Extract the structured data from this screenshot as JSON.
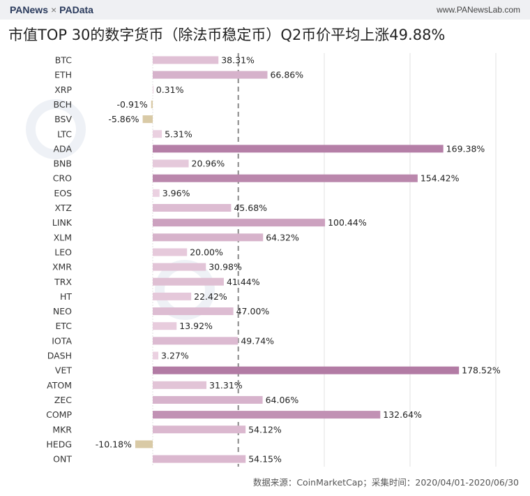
{
  "header": {
    "brand_left": "PANews",
    "separator": "×",
    "brand_right": "PAData",
    "site": "www.PANewsLab.com"
  },
  "title": "市值TOP 30的数字货币（除法币稳定币）Q2币价平均上涨49.88%",
  "watermarks": [
    "PANews",
    "PAData"
  ],
  "source": "数据来源：CoinMarketCap；采集时间：2020/04/01-2020/06/30",
  "colors": {
    "positive_strong": "#b27aa3",
    "positive_light": "#ecd3e2",
    "negative": "#d9caa6",
    "average_line": "#888888"
  },
  "chart_data": {
    "type": "bar",
    "orientation": "horizontal",
    "average": 49.88,
    "grid": true,
    "xlim": [
      -10.18,
      200
    ],
    "categories": [
      "BTC",
      "ETH",
      "XRP",
      "BCH",
      "BSV",
      "LTC",
      "ADA",
      "BNB",
      "CRO",
      "EOS",
      "XTZ",
      "LINK",
      "XLM",
      "LEO",
      "XMR",
      "TRX",
      "HT",
      "NEO",
      "ETC",
      "IOTA",
      "DASH",
      "VET",
      "ATOM",
      "ZEC",
      "COMP",
      "MKR",
      "HEDG",
      "ONT"
    ],
    "values": [
      38.31,
      66.86,
      0.31,
      -0.91,
      -5.86,
      5.31,
      169.38,
      20.96,
      154.42,
      3.96,
      45.68,
      100.44,
      64.32,
      20.0,
      30.98,
      41.44,
      22.42,
      47.0,
      13.92,
      49.74,
      3.27,
      178.52,
      31.31,
      64.06,
      132.64,
      54.12,
      -10.18,
      54.15
    ],
    "labels": [
      "38.31%",
      "66.86%",
      "0.31%",
      "-0.91%",
      "-5.86%",
      "5.31%",
      "169.38%",
      "20.96%",
      "154.42%",
      "3.96%",
      "45.68%",
      "100.44%",
      "64.32%",
      "20.00%",
      "30.98%",
      "41.44%",
      "22.42%",
      "47.00%",
      "13.92%",
      "49.74%",
      "3.27%",
      "178.52%",
      "31.31%",
      "64.06%",
      "132.64%",
      "54.12%",
      "-10.18%",
      "54.15%"
    ]
  }
}
